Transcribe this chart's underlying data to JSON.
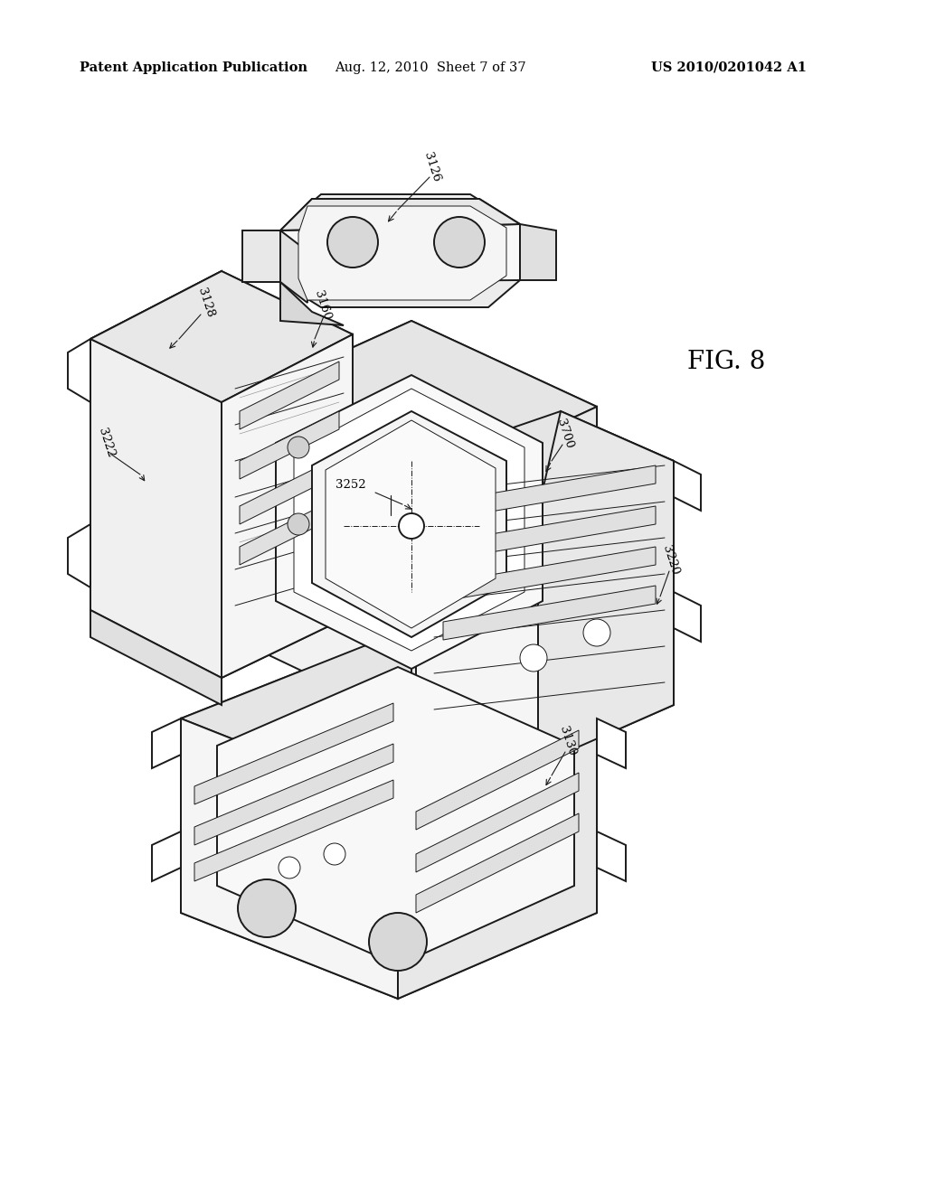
{
  "bg_color": "#ffffff",
  "header_left": "Patent Application Publication",
  "header_center": "Aug. 12, 2010  Sheet 7 of 37",
  "header_right": "US 2010/0201042 A1",
  "fig_label": "FIG. 8",
  "header_fontsize": 10.5,
  "fig_label_fontsize": 20,
  "line_color": "#1a1a1a",
  "line_width": 1.4,
  "thin_line": 0.7,
  "label_fontsize": 9.5
}
